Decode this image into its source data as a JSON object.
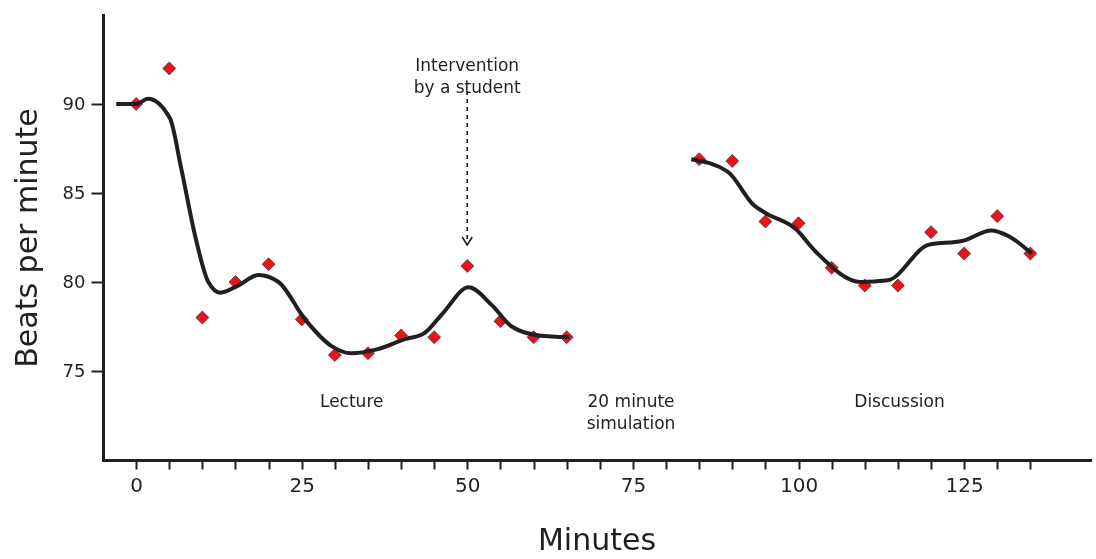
{
  "chart_data": {
    "type": "scatter",
    "xlabel": "Minutes",
    "ylabel": "Beats per minute",
    "xlim": [
      -5,
      144
    ],
    "ylim": [
      70,
      95
    ],
    "xticks": [
      0,
      {
        "value": 5,
        "label": null
      },
      {
        "value": 10,
        "label": null
      },
      {
        "value": 15,
        "label": null
      },
      {
        "value": 20,
        "label": null
      },
      25,
      {
        "value": 30,
        "label": null
      },
      {
        "value": 35,
        "label": null
      },
      {
        "value": 40,
        "label": null
      },
      {
        "value": 45,
        "label": null
      },
      50,
      {
        "value": 55,
        "label": null
      },
      {
        "value": 60,
        "label": null
      },
      {
        "value": 65,
        "label": null
      },
      {
        "value": 70,
        "label": null
      },
      75,
      {
        "value": 80,
        "label": null
      },
      {
        "value": 85,
        "label": null
      },
      {
        "value": 90,
        "label": null
      },
      {
        "value": 95,
        "label": null
      },
      100,
      {
        "value": 105,
        "label": null
      },
      {
        "value": 110,
        "label": null
      },
      {
        "value": 115,
        "label": null
      },
      {
        "value": 120,
        "label": null
      },
      125,
      {
        "value": 130,
        "label": null
      },
      {
        "value": 135,
        "label": null
      }
    ],
    "yticks": [
      75,
      80,
      85,
      90
    ],
    "grid": false,
    "series": [
      {
        "marker": "diamond",
        "color": "#e8141c",
        "x": [
          0,
          5,
          10,
          15,
          20,
          25,
          30,
          35,
          40,
          45,
          50,
          55,
          60,
          65,
          85,
          90,
          95,
          100,
          105,
          110,
          115,
          120,
          125,
          130,
          135
        ],
        "values": [
          90,
          92,
          78,
          80,
          81,
          77.9,
          75.9,
          76,
          77,
          76.9,
          80.9,
          77.8,
          76.9,
          76.9,
          86.9,
          86.8,
          83.4,
          83.3,
          80.8,
          79.8,
          79.8,
          82.8,
          81.6,
          83.7,
          81.6
        ]
      },
      {
        "type": "line",
        "color": "#231f20",
        "x": [
          -3,
          0,
          1.8,
          5.1,
          6.8,
          8.9,
          10.9,
          12.7,
          15.4,
          18.5,
          21.5,
          25.5,
          29.5,
          32.5,
          36.2,
          40.7,
          43.4,
          46.2,
          50.2,
          53.7,
          56.7,
          60.8,
          65.4,
          75,
          83.8,
          89.3,
          93.3,
          94.9,
          99.5,
          102.6,
          109.4,
          113.5,
          119.7,
          124.7,
          129.1,
          131.6,
          135.2
        ],
        "values": [
          90,
          90,
          90.3,
          89.2,
          86.4,
          82.6,
          80,
          79.4,
          79.8,
          80.4,
          80,
          77.9,
          76.4,
          76,
          76.2,
          76.8,
          77.1,
          78.2,
          79.7,
          78.7,
          77.5,
          77,
          76.9,
          null,
          86.9,
          86.2,
          84.3,
          83.9,
          83,
          81.7,
          80,
          80.1,
          82.1,
          82.3,
          82.9,
          82.6,
          81.6
        ]
      }
    ],
    "annotations": [
      "Intervention\nby a student",
      "Lecture",
      "20 minute\nsimulation",
      "Discussion"
    ]
  }
}
